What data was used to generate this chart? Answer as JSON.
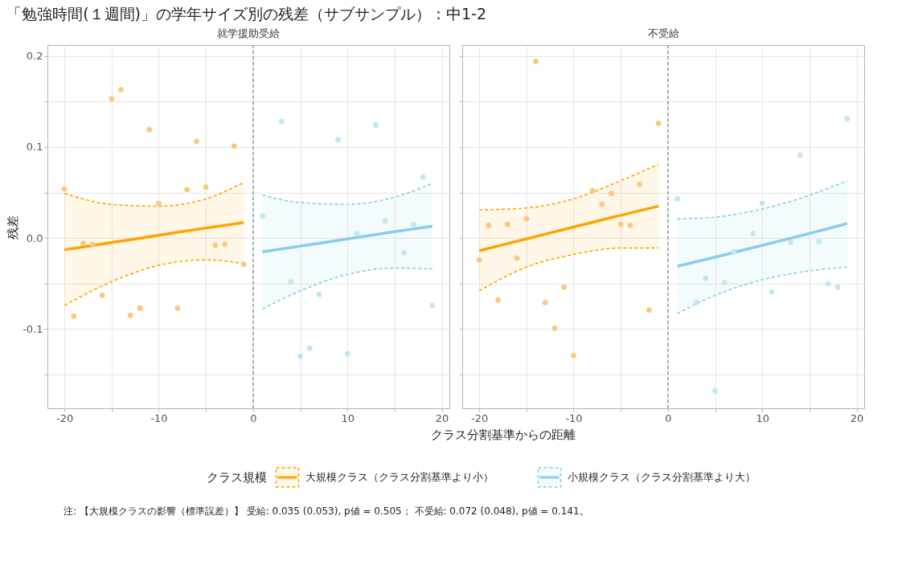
{
  "chart_data": [
    {
      "type": "other",
      "title": "「勉強時間(１週間)」の学年サイズ別の残差（サブサンプル）：中1-2"
    },
    {
      "type": "scatter",
      "title": "就学援助受給",
      "xlabel": "クラス分割基準からの距離",
      "ylabel": "残差",
      "legend_title": "クラス規模",
      "legend": "bottom",
      "grid": true,
      "xlim": [
        -21.8,
        20.8
      ],
      "ylim": [
        -0.187,
        0.212
      ],
      "xticks": [
        -20,
        {
          "value": -15,
          "label": null
        },
        -10,
        {
          "value": -5,
          "label": null
        },
        0,
        {
          "value": 5,
          "label": null
        },
        10,
        {
          "value": 15,
          "label": null
        },
        20
      ],
      "yticks": [
        {
          "value": -0.15,
          "label": null
        },
        -0.1,
        {
          "value": -0.05,
          "label": null
        },
        {
          "value": 0,
          "label": "0.0"
        },
        {
          "value": 0.05,
          "label": null
        },
        0.1,
        {
          "value": 0.15,
          "label": null
        },
        0.2
      ],
      "ref_lines": [
        {
          "axis": "x",
          "value": 0,
          "color": "#999999",
          "line_style": "dashed"
        }
      ],
      "annotations": [
        "注: 【大規模クラスの影響（標準誤差）】 受給: 0.035 (0.053), p値 = 0.505； 不受給: 0.072 (0.048), p値 = 0.141。"
      ],
      "series": [
        {
          "type": "scatter",
          "color": "#fcc77f",
          "x": [
            -20,
            -19,
            -18,
            -17,
            -16,
            -15,
            -14,
            -13,
            -12,
            -11,
            -10,
            -8,
            -7,
            -6,
            -5,
            -4,
            -3,
            -2,
            -1
          ],
          "values": [
            0.054,
            -0.086,
            -0.006,
            -0.007,
            -0.063,
            0.153,
            0.163,
            -0.085,
            -0.077,
            0.119,
            0.038,
            -0.077,
            0.053,
            0.106,
            0.056,
            -0.008,
            -0.007,
            0.101,
            -0.029
          ]
        },
        {
          "type": "scatter",
          "color": "#c3e5f4",
          "x": [
            1,
            3,
            4,
            5,
            6,
            7,
            9,
            10,
            11,
            13,
            14,
            16,
            17,
            18,
            19
          ],
          "values": [
            0.024,
            0.128,
            -0.048,
            -0.13,
            -0.121,
            -0.062,
            0.108,
            -0.127,
            0.005,
            0.124,
            0.019,
            -0.016,
            0.015,
            0.067,
            -0.074
          ]
        },
        {
          "type": "line",
          "name": "大規模クラス（クラス分割基準より小）",
          "color": "#ffa500",
          "x": [
            -20,
            -15,
            -10,
            -5,
            -1
          ],
          "values": [
            -0.013,
            -0.005,
            0.003,
            0.011,
            0.017
          ],
          "lower": [
            -0.074,
            -0.048,
            -0.03,
            -0.024,
            -0.028
          ],
          "upper": [
            0.049,
            0.037,
            0.035,
            0.043,
            0.061
          ]
        },
        {
          "type": "line",
          "color": "#ffa500",
          "line_style": "dashed",
          "x": [
            -20,
            -15,
            -10,
            -5,
            -1
          ],
          "values": [
            -0.074,
            -0.048,
            -0.03,
            -0.024,
            -0.028
          ]
        },
        {
          "type": "line",
          "color": "#ffa500",
          "line_style": "dashed",
          "x": [
            -20,
            -15,
            -10,
            -5,
            -1
          ],
          "values": [
            0.049,
            0.037,
            0.035,
            0.043,
            0.061
          ]
        },
        {
          "type": "line",
          "name": "小規模クラス（クラス分割基準より大）",
          "color": "#87ceeb",
          "x": [
            1,
            5,
            10,
            15,
            19
          ],
          "values": [
            -0.015,
            -0.009,
            -0.001,
            0.007,
            0.013
          ],
          "lower": [
            -0.078,
            -0.058,
            -0.04,
            -0.033,
            -0.034
          ],
          "upper": [
            0.047,
            0.039,
            0.037,
            0.045,
            0.06
          ]
        },
        {
          "type": "line",
          "color": "#87ceeb",
          "line_style": "dashed",
          "x": [
            1,
            5,
            10,
            15,
            19
          ],
          "values": [
            -0.078,
            -0.058,
            -0.04,
            -0.033,
            -0.034
          ]
        },
        {
          "type": "line",
          "color": "#87ceeb",
          "line_style": "dashed",
          "x": [
            1,
            5,
            10,
            15,
            19
          ],
          "values": [
            0.047,
            0.039,
            0.037,
            0.045,
            0.06
          ]
        }
      ]
    },
    {
      "type": "scatter",
      "title": "不受給",
      "grid": true,
      "tick_labels": "x",
      "xlim": [
        -21.8,
        20.8
      ],
      "ylim": [
        -0.187,
        0.212
      ],
      "xticks": [
        -20,
        {
          "value": -15,
          "label": null
        },
        -10,
        {
          "value": -5,
          "label": null
        },
        0,
        {
          "value": 5,
          "label": null
        },
        10,
        {
          "value": 15,
          "label": null
        },
        20
      ],
      "yticks": [
        -0.15,
        -0.1,
        -0.05,
        0,
        0.05,
        0.1,
        0.15,
        0.2
      ],
      "ref_lines": [
        {
          "axis": "x",
          "value": 0,
          "color": "#999999",
          "line_style": "dashed"
        }
      ],
      "series": [
        {
          "type": "scatter",
          "color": "#fcc77f",
          "x": [
            -20,
            -19,
            -18,
            -17,
            -16,
            -15,
            -14,
            -13,
            -12,
            -11,
            -10,
            -8,
            -7,
            -6,
            -5,
            -4,
            -3,
            -2,
            -1
          ],
          "values": [
            -0.024,
            0.014,
            -0.068,
            0.015,
            -0.022,
            0.021,
            0.194,
            -0.071,
            -0.099,
            -0.054,
            -0.129,
            0.052,
            0.037,
            0.049,
            0.015,
            0.014,
            0.059,
            -0.079,
            0.126
          ]
        },
        {
          "type": "scatter",
          "color": "#c3e5f4",
          "x": [
            1,
            3,
            4,
            5,
            6,
            7,
            9,
            10,
            11,
            13,
            14,
            16,
            17,
            18,
            19
          ],
          "values": [
            0.043,
            -0.071,
            -0.044,
            -0.168,
            -0.049,
            -0.015,
            0.005,
            0.038,
            -0.059,
            -0.005,
            0.091,
            -0.004,
            -0.05,
            -0.054,
            0.131
          ]
        },
        {
          "type": "line",
          "color": "#ffa500",
          "x": [
            -20,
            -15,
            -10,
            -5,
            -1
          ],
          "values": [
            -0.014,
            -0.001,
            0.012,
            0.025,
            0.035
          ],
          "lower": [
            -0.058,
            -0.032,
            -0.018,
            -0.011,
            -0.011
          ],
          "upper": [
            0.031,
            0.033,
            0.043,
            0.063,
            0.081
          ]
        },
        {
          "type": "line",
          "color": "#ffa500",
          "line_style": "dashed",
          "x": [
            -20,
            -15,
            -10,
            -5,
            -1
          ],
          "values": [
            -0.058,
            -0.032,
            -0.018,
            -0.011,
            -0.011
          ]
        },
        {
          "type": "line",
          "color": "#ffa500",
          "line_style": "dashed",
          "x": [
            -20,
            -15,
            -10,
            -5,
            -1
          ],
          "values": [
            0.031,
            0.033,
            0.043,
            0.063,
            0.081
          ]
        },
        {
          "type": "line",
          "color": "#87ceeb",
          "x": [
            1,
            5,
            10,
            15,
            19
          ],
          "values": [
            -0.031,
            -0.021,
            -0.008,
            0.005,
            0.016
          ],
          "lower": [
            -0.083,
            -0.063,
            -0.046,
            -0.036,
            -0.032
          ],
          "upper": [
            0.021,
            0.023,
            0.032,
            0.047,
            0.063
          ]
        },
        {
          "type": "line",
          "color": "#87ceeb",
          "line_style": "dashed",
          "x": [
            1,
            5,
            10,
            15,
            19
          ],
          "values": [
            -0.083,
            -0.063,
            -0.046,
            -0.036,
            -0.032
          ]
        },
        {
          "type": "line",
          "color": "#87ceeb",
          "line_style": "dashed",
          "x": [
            1,
            5,
            10,
            15,
            19
          ],
          "values": [
            0.021,
            0.023,
            0.032,
            0.047,
            0.063
          ]
        }
      ]
    }
  ]
}
